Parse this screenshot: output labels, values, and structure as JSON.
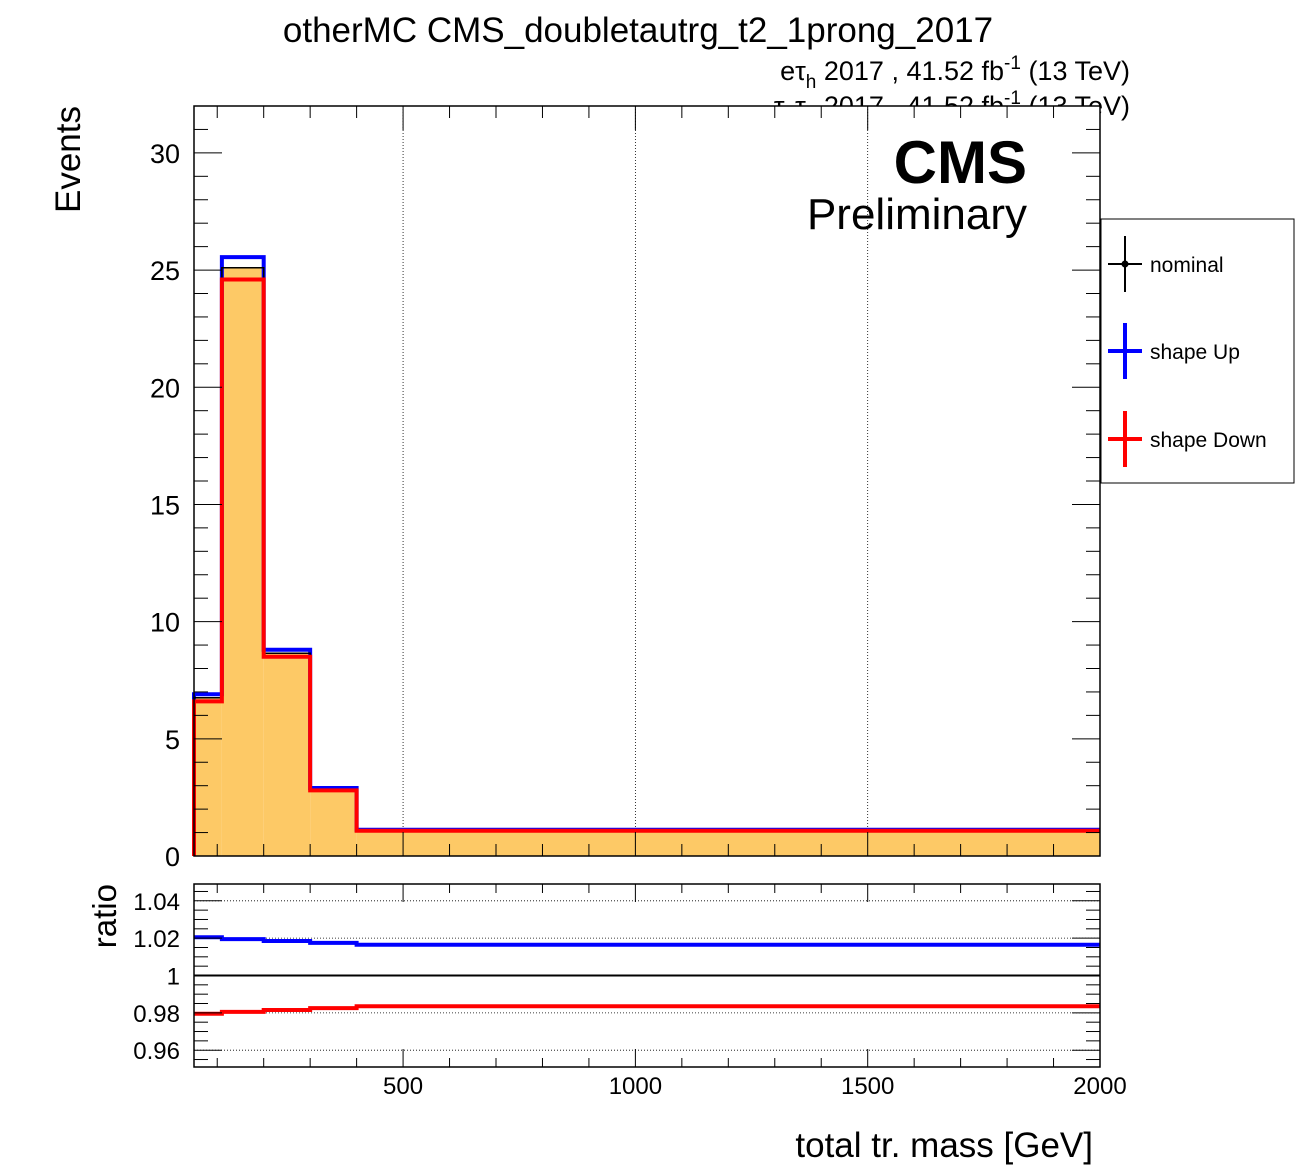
{
  "title": "otherMC CMS_doubletautrg_t2_1prong_2017",
  "lumi": {
    "line1_ch": "eτ",
    "line1_sub": "h",
    "line1_rest": " 2017 , 41.52 fb",
    "line1_sup": "-1",
    "line1_energy": " (13 TeV)",
    "line2_ch_a": "τ",
    "line2_sub_a": "h",
    "line2_ch_b": "τ",
    "line2_sub_b": "h",
    "line2_rest": " 2017 , 41.52 fb",
    "line2_sup": "-1",
    "line2_energy": " (13 TeV)"
  },
  "cms_label": "CMS",
  "cms_sublabel": "Preliminary",
  "colors": {
    "nominal": "#000000",
    "up": "#0000ff",
    "down": "#ff0000",
    "fill": "#fdc966"
  },
  "chart_data": [
    {
      "type": "histogram",
      "ylabel": "Events",
      "xlim": [
        50,
        2000
      ],
      "ylim": [
        0,
        32
      ],
      "yticks": [
        0,
        5,
        10,
        15,
        20,
        25,
        30
      ],
      "xgrid": [
        500,
        1000,
        1500
      ],
      "bin_edges": [
        50,
        110,
        200,
        300,
        400,
        2000
      ],
      "series": [
        {
          "name": "nominal",
          "values": [
            6.75,
            25.1,
            8.65,
            2.85,
            1.1
          ]
        },
        {
          "name": "shape Up",
          "values": [
            6.9,
            25.55,
            8.8,
            2.9,
            1.12
          ]
        },
        {
          "name": "shape Down",
          "values": [
            6.6,
            24.6,
            8.5,
            2.8,
            1.08
          ]
        }
      ],
      "legend": {
        "placement": "right",
        "entries": [
          "nominal",
          "shape Up",
          "shape Down"
        ]
      }
    },
    {
      "type": "line",
      "ylabel": "ratio",
      "xlabel": "total tr. mass [GeV]",
      "xlim": [
        50,
        2000
      ],
      "ylim": [
        0.951,
        1.049
      ],
      "yticks": [
        0.96,
        0.98,
        1,
        1.02,
        1.04
      ],
      "ytick_labels": [
        "0.96",
        "0.98",
        "1",
        "1.02",
        "1.04"
      ],
      "xticks": [
        500,
        1000,
        1500,
        2000
      ],
      "xtick_labels": [
        "500",
        "1000",
        "1500",
        "2000"
      ],
      "bin_edges": [
        50,
        110,
        200,
        300,
        400,
        2000
      ],
      "series": [
        {
          "name": "shape Up",
          "values": [
            1.0205,
            1.0195,
            1.0185,
            1.0175,
            1.0165
          ]
        },
        {
          "name": "shape Down",
          "values": [
            0.9795,
            0.9805,
            0.9815,
            0.9825,
            0.9835
          ]
        }
      ]
    }
  ]
}
